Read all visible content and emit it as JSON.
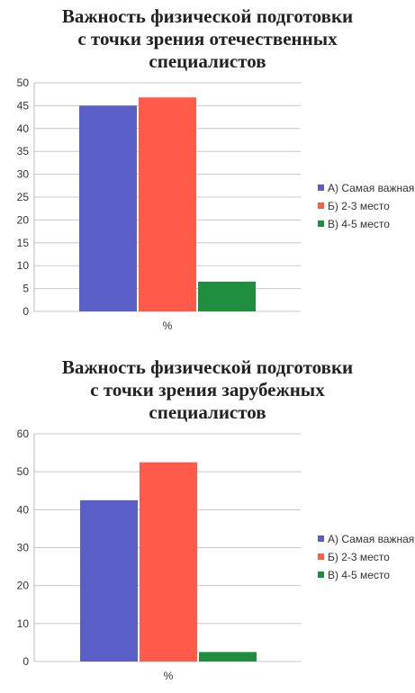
{
  "chart_data": [
    {
      "type": "bar",
      "title_lines": [
        "Важность физической подготовки",
        "с точки зрения отечественных",
        "специалистов"
      ],
      "categories": [
        "%"
      ],
      "series": [
        {
          "name": "А) Самая важная",
          "values": [
            45
          ],
          "color": "#5a5fc7"
        },
        {
          "name": "Б) 2-3 место",
          "values": [
            46.8
          ],
          "color": "#ff5a4a"
        },
        {
          "name": "В) 4-5 место",
          "values": [
            6.5
          ],
          "color": "#1f8f3f"
        }
      ],
      "ylim": [
        0,
        50
      ],
      "yticks": [
        0,
        5,
        10,
        15,
        20,
        25,
        30,
        35,
        40,
        45,
        50
      ],
      "grid": true,
      "legend_position": "right"
    },
    {
      "type": "bar",
      "title_lines": [
        "Важность физической подготовки",
        "с точки зрения зарубежных",
        "специалистов"
      ],
      "categories": [
        "%"
      ],
      "series": [
        {
          "name": "А) Самая важная",
          "values": [
            42.5
          ],
          "color": "#5a5fc7"
        },
        {
          "name": "Б) 2-3 место",
          "values": [
            52.5
          ],
          "color": "#ff5a4a"
        },
        {
          "name": "В) 4-5 место",
          "values": [
            2.5
          ],
          "color": "#1f8f3f"
        }
      ],
      "ylim": [
        0,
        60
      ],
      "yticks": [
        0,
        10,
        20,
        30,
        40,
        50,
        60
      ],
      "grid": true,
      "legend_position": "right"
    }
  ]
}
